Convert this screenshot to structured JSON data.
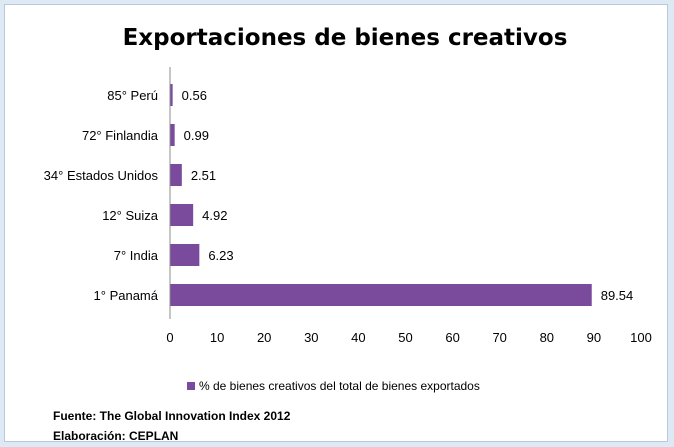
{
  "chart_data": {
    "type": "bar",
    "orientation": "horizontal",
    "title": "Exportaciones de bienes creativos",
    "categories": [
      "85° Perú",
      "72° Finlandia",
      "34° Estados Unidos",
      "12° Suiza",
      "7° India",
      "1°  Panamá"
    ],
    "series": [
      {
        "name": "% de bienes creativos del total de bienes exportados",
        "values": [
          0.56,
          0.99,
          2.51,
          4.92,
          6.23,
          89.54
        ]
      }
    ],
    "value_labels": [
      "0.56",
      "0.99",
      "2.51",
      "4.92",
      "6.23",
      "89.54"
    ],
    "xlim": [
      0,
      100
    ],
    "xticks": [
      "0",
      "10",
      "20",
      "30",
      "40",
      "50",
      "60",
      "70",
      "80",
      "90",
      "100"
    ],
    "grid": false,
    "legend_position": "bottom",
    "bar_color": "#7a4b9d"
  },
  "footer": {
    "source": "Fuente: The Global Innovation Index 2012",
    "credit": "Elaboración:  CEPLAN"
  }
}
